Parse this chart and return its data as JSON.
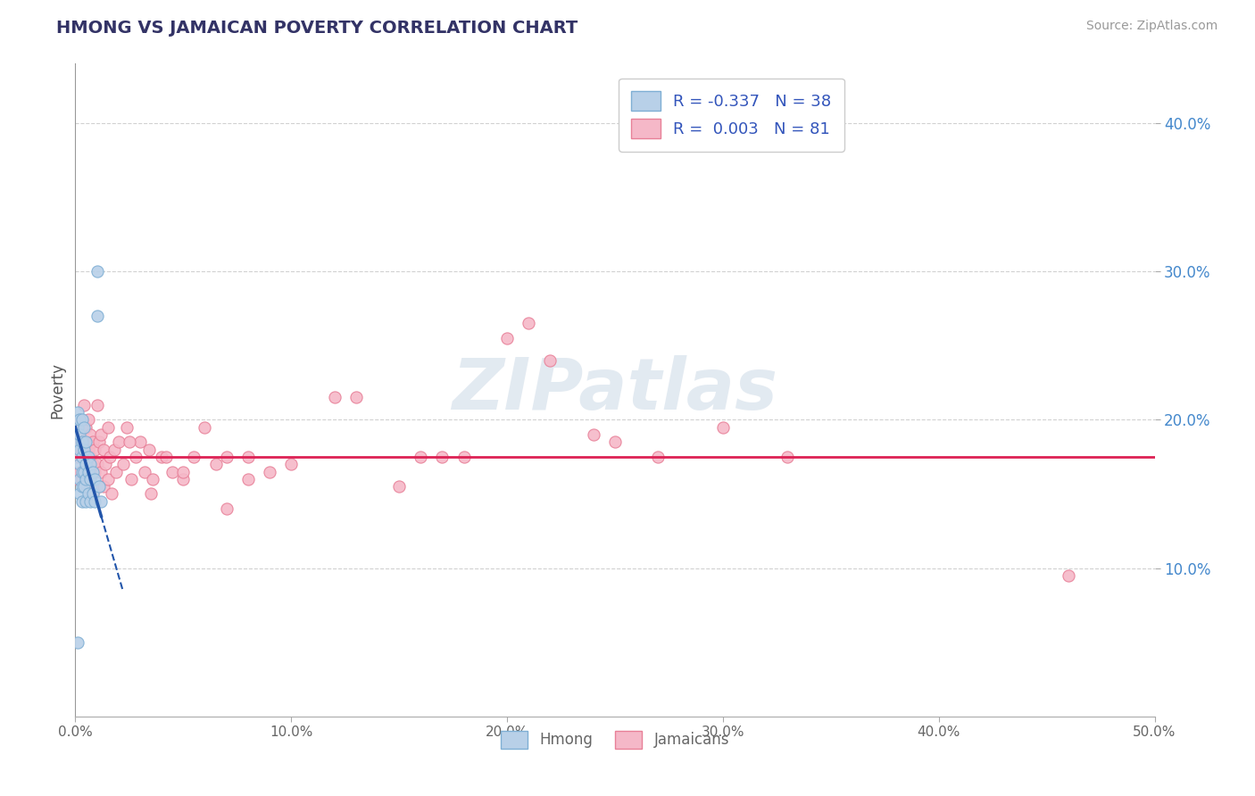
{
  "title": "HMONG VS JAMAICAN POVERTY CORRELATION CHART",
  "source": "Source: ZipAtlas.com",
  "ylabel": "Poverty",
  "xlim": [
    0.0,
    0.5
  ],
  "ylim": [
    0.0,
    0.44
  ],
  "xtick_vals": [
    0.0,
    0.1,
    0.2,
    0.3,
    0.4,
    0.5
  ],
  "xtick_labels": [
    "0.0%",
    "10.0%",
    "20.0%",
    "30.0%",
    "40.0%",
    "50.0%"
  ],
  "ytick_vals": [
    0.1,
    0.2,
    0.3,
    0.4
  ],
  "ytick_labels": [
    "10.0%",
    "20.0%",
    "30.0%",
    "40.0%"
  ],
  "hmong_R": -0.337,
  "hmong_N": 38,
  "jamaican_R": 0.003,
  "jamaican_N": 81,
  "legend_label_hmong": "Hmong",
  "legend_label_jamaican": "Jamaicans",
  "marker_size": 90,
  "hmong_color": "#b8d0e8",
  "hmong_edge_color": "#7fafd4",
  "jamaican_color": "#f5b8c8",
  "jamaican_edge_color": "#e88098",
  "trend_hmong_color": "#2255aa",
  "trend_jamaican_color": "#dd2255",
  "watermark_text": "ZIPatlas",
  "background_color": "#ffffff",
  "grid_color": "#cccccc",
  "hmong_x": [
    0.001,
    0.001,
    0.001,
    0.002,
    0.002,
    0.002,
    0.002,
    0.002,
    0.002,
    0.003,
    0.003,
    0.003,
    0.003,
    0.003,
    0.003,
    0.004,
    0.004,
    0.004,
    0.004,
    0.005,
    0.005,
    0.005,
    0.005,
    0.006,
    0.006,
    0.006,
    0.007,
    0.007,
    0.007,
    0.008,
    0.008,
    0.009,
    0.009,
    0.01,
    0.01,
    0.011,
    0.012,
    0.001
  ],
  "hmong_y": [
    0.205,
    0.195,
    0.185,
    0.2,
    0.19,
    0.18,
    0.17,
    0.16,
    0.15,
    0.2,
    0.185,
    0.175,
    0.165,
    0.155,
    0.145,
    0.195,
    0.18,
    0.165,
    0.155,
    0.185,
    0.17,
    0.16,
    0.145,
    0.175,
    0.165,
    0.15,
    0.17,
    0.16,
    0.145,
    0.165,
    0.15,
    0.16,
    0.145,
    0.3,
    0.27,
    0.155,
    0.145,
    0.05
  ],
  "jamaican_x": [
    0.001,
    0.001,
    0.001,
    0.002,
    0.002,
    0.002,
    0.003,
    0.003,
    0.003,
    0.004,
    0.004,
    0.004,
    0.005,
    0.005,
    0.005,
    0.006,
    0.006,
    0.006,
    0.007,
    0.007,
    0.007,
    0.008,
    0.008,
    0.008,
    0.009,
    0.009,
    0.01,
    0.01,
    0.011,
    0.011,
    0.012,
    0.012,
    0.013,
    0.013,
    0.014,
    0.015,
    0.015,
    0.016,
    0.017,
    0.018,
    0.019,
    0.02,
    0.022,
    0.024,
    0.026,
    0.028,
    0.03,
    0.032,
    0.034,
    0.036,
    0.04,
    0.045,
    0.05,
    0.055,
    0.06,
    0.065,
    0.07,
    0.08,
    0.09,
    0.1,
    0.12,
    0.15,
    0.17,
    0.2,
    0.22,
    0.25,
    0.27,
    0.3,
    0.33,
    0.18,
    0.21,
    0.24,
    0.46,
    0.05,
    0.07,
    0.13,
    0.16,
    0.08,
    0.025,
    0.035,
    0.042
  ],
  "jamaican_y": [
    0.19,
    0.175,
    0.16,
    0.2,
    0.185,
    0.165,
    0.195,
    0.18,
    0.16,
    0.21,
    0.185,
    0.165,
    0.195,
    0.175,
    0.155,
    0.2,
    0.18,
    0.16,
    0.19,
    0.175,
    0.155,
    0.185,
    0.17,
    0.15,
    0.18,
    0.165,
    0.21,
    0.17,
    0.185,
    0.155,
    0.19,
    0.165,
    0.18,
    0.155,
    0.17,
    0.195,
    0.16,
    0.175,
    0.15,
    0.18,
    0.165,
    0.185,
    0.17,
    0.195,
    0.16,
    0.175,
    0.185,
    0.165,
    0.18,
    0.16,
    0.175,
    0.165,
    0.16,
    0.175,
    0.195,
    0.17,
    0.175,
    0.175,
    0.165,
    0.17,
    0.215,
    0.155,
    0.175,
    0.255,
    0.24,
    0.185,
    0.175,
    0.195,
    0.175,
    0.175,
    0.265,
    0.19,
    0.095,
    0.165,
    0.14,
    0.215,
    0.175,
    0.16,
    0.185,
    0.15,
    0.175
  ],
  "trend_hmong_x0": 0.0,
  "trend_hmong_x1": 0.012,
  "trend_hmong_y0": 0.195,
  "trend_hmong_y1": 0.135,
  "trend_hmong_dash_x0": 0.012,
  "trend_hmong_dash_x1": 0.022,
  "trend_jamaican_y": 0.175
}
